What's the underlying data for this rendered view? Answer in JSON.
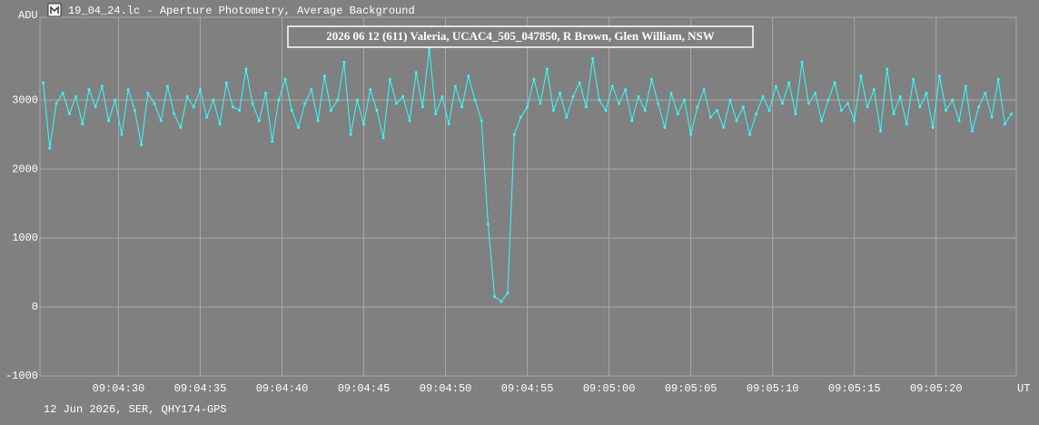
{
  "window_title": "19_04_24.lc - Aperture Photometry, Average Background",
  "chart_data": {
    "type": "line",
    "title": "2026 06 12 (611) Valeria, UCAC4_505_047850, R Brown, Glen William, NSW",
    "y_label": "ADU",
    "x_label": "UT",
    "footer": "12 Jun 2026, SER, QHY174-GPS",
    "xlim": [
      25.2,
      84.9
    ],
    "ylim": [
      -1000,
      4200
    ],
    "xticks": [
      {
        "value": 30,
        "label": "09:04:30"
      },
      {
        "value": 35,
        "label": "09:04:35"
      },
      {
        "value": 40,
        "label": "09:04:40"
      },
      {
        "value": 45,
        "label": "09:04:45"
      },
      {
        "value": 50,
        "label": "09:04:50"
      },
      {
        "value": 55,
        "label": "09:04:55"
      },
      {
        "value": 60,
        "label": "09:05:00"
      },
      {
        "value": 65,
        "label": "09:05:05"
      },
      {
        "value": 70,
        "label": "09:05:10"
      },
      {
        "value": 75,
        "label": "09:05:15"
      },
      {
        "value": 80,
        "label": "09:05:20"
      }
    ],
    "yticks": [
      -1000,
      0,
      1000,
      2000,
      3000
    ],
    "grid": true,
    "x": [
      25.4,
      25.8,
      26.2,
      26.6,
      27.0,
      27.4,
      27.8,
      28.2,
      28.6,
      29.0,
      29.4,
      29.8,
      30.2,
      30.6,
      31.0,
      31.4,
      31.8,
      32.2,
      32.6,
      33.0,
      33.4,
      33.8,
      34.2,
      34.6,
      35.0,
      35.4,
      35.8,
      36.2,
      36.6,
      37.0,
      37.4,
      37.8,
      38.2,
      38.6,
      39.0,
      39.4,
      39.8,
      40.2,
      40.6,
      41.0,
      41.4,
      41.8,
      42.2,
      42.6,
      43.0,
      43.4,
      43.8,
      44.2,
      44.6,
      45.0,
      45.4,
      45.8,
      46.2,
      46.6,
      47.0,
      47.4,
      47.8,
      48.2,
      48.6,
      49.0,
      49.4,
      49.8,
      50.2,
      50.6,
      51.0,
      51.4,
      51.8,
      52.2,
      52.6,
      53.0,
      53.4,
      53.8,
      54.2,
      54.6,
      55.0,
      55.4,
      55.8,
      56.2,
      56.6,
      57.0,
      57.4,
      57.8,
      58.2,
      58.6,
      59.0,
      59.4,
      59.8,
      60.2,
      60.6,
      61.0,
      61.4,
      61.8,
      62.2,
      62.6,
      63.0,
      63.4,
      63.8,
      64.2,
      64.6,
      65.0,
      65.4,
      65.8,
      66.2,
      66.6,
      67.0,
      67.4,
      67.8,
      68.2,
      68.6,
      69.0,
      69.4,
      69.8,
      70.2,
      70.6,
      71.0,
      71.4,
      71.8,
      72.2,
      72.6,
      73.0,
      73.4,
      73.8,
      74.2,
      74.6,
      75.0,
      75.4,
      75.8,
      76.2,
      76.6,
      77.0,
      77.4,
      77.8,
      78.2,
      78.6,
      79.0,
      79.4,
      79.8,
      80.2,
      80.6,
      81.0,
      81.4,
      81.8,
      82.2,
      82.6,
      83.0,
      83.4,
      83.8,
      84.2,
      84.6
    ],
    "series": [
      {
        "color": "#33ffff",
        "values": [
          3250,
          2300,
          2950,
          3100,
          2800,
          3050,
          2650,
          3150,
          2900,
          3200,
          2700,
          3000,
          2500,
          3150,
          2850,
          2350,
          3100,
          2950,
          2700,
          3200,
          2800,
          2600,
          3050,
          2900,
          3150,
          2750,
          3000,
          2650,
          3250,
          2900,
          2850,
          3450,
          2950,
          2700,
          3100,
          2400,
          3000,
          3300,
          2850,
          2600,
          2950,
          3150,
          2700,
          3350,
          2850,
          3000,
          3550,
          2500,
          3000,
          2650,
          3150,
          2850,
          2450,
          3300,
          2950,
          3050,
          2700,
          3400,
          2900,
          3750,
          2800,
          3050,
          2650,
          3200,
          2900,
          3350,
          3000,
          2700,
          1200,
          150,
          80,
          200,
          2500,
          2750,
          2900,
          3300,
          2950,
          3450,
          2850,
          3100,
          2750,
          3050,
          3250,
          2900,
          3600,
          3000,
          2850,
          3200,
          2950,
          3150,
          2700,
          3050,
          2850,
          3300,
          2950,
          2600,
          3100,
          2800,
          3000,
          2500,
          2900,
          3150,
          2750,
          2850,
          2600,
          3000,
          2700,
          2900,
          2500,
          2800,
          3050,
          2850,
          3200,
          2950,
          3250,
          2800,
          3550,
          2950,
          3100,
          2700,
          3000,
          3250,
          2850,
          2950,
          2700,
          3350,
          2900,
          3150,
          2550,
          3450,
          2800,
          3050,
          2650,
          3300,
          2900,
          3100,
          2600,
          3350,
          2850,
          3000,
          2700,
          3200,
          2550,
          2900,
          3100,
          2750,
          3300,
          2650,
          2800
        ]
      }
    ]
  }
}
